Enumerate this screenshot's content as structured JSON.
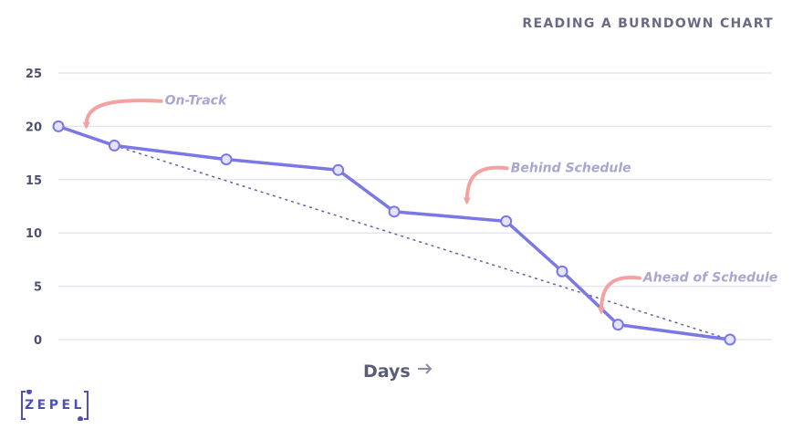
{
  "title": "READING A BURNDOWN CHART",
  "logo": {
    "text": "ZEPEL"
  },
  "colors": {
    "actual_line": "#7b78e5",
    "ideal_line": "#6264a8",
    "marker_fill": "#e4e3f8",
    "grid": "#e6e6ec",
    "arrow": "#f4a1a1",
    "annotation": "#a9a6d0",
    "logo": "#4d50b8"
  },
  "chart_data": {
    "type": "line",
    "xlabel": "Days",
    "xlabel_icon": "right-arrow-icon",
    "ylabel": "",
    "ylim": [
      0,
      25
    ],
    "yticks": [
      0,
      5,
      10,
      15,
      20,
      25
    ],
    "grid": true,
    "series": [
      {
        "style": "solid-with-markers",
        "x": [
          0,
          1,
          2,
          3,
          4,
          5,
          6,
          7,
          8,
          9,
          10,
          11,
          12
        ],
        "values": [
          20,
          18.2,
          null,
          16.9,
          null,
          15.9,
          12,
          null,
          11.1,
          6.4,
          1.4,
          null,
          0
        ]
      },
      {
        "style": "dotted",
        "x": [
          1,
          12
        ],
        "values": [
          18.2,
          0
        ]
      }
    ],
    "xlim": [
      0,
      12
    ],
    "annotations": [
      {
        "text": "On-Track",
        "x": 0.6,
        "y": 18.8
      },
      {
        "text": "Behind Schedule",
        "x": 7.5,
        "y": 12.3
      },
      {
        "text": "Ahead of Schedule",
        "x": 9.8,
        "y": 2.0
      }
    ]
  }
}
